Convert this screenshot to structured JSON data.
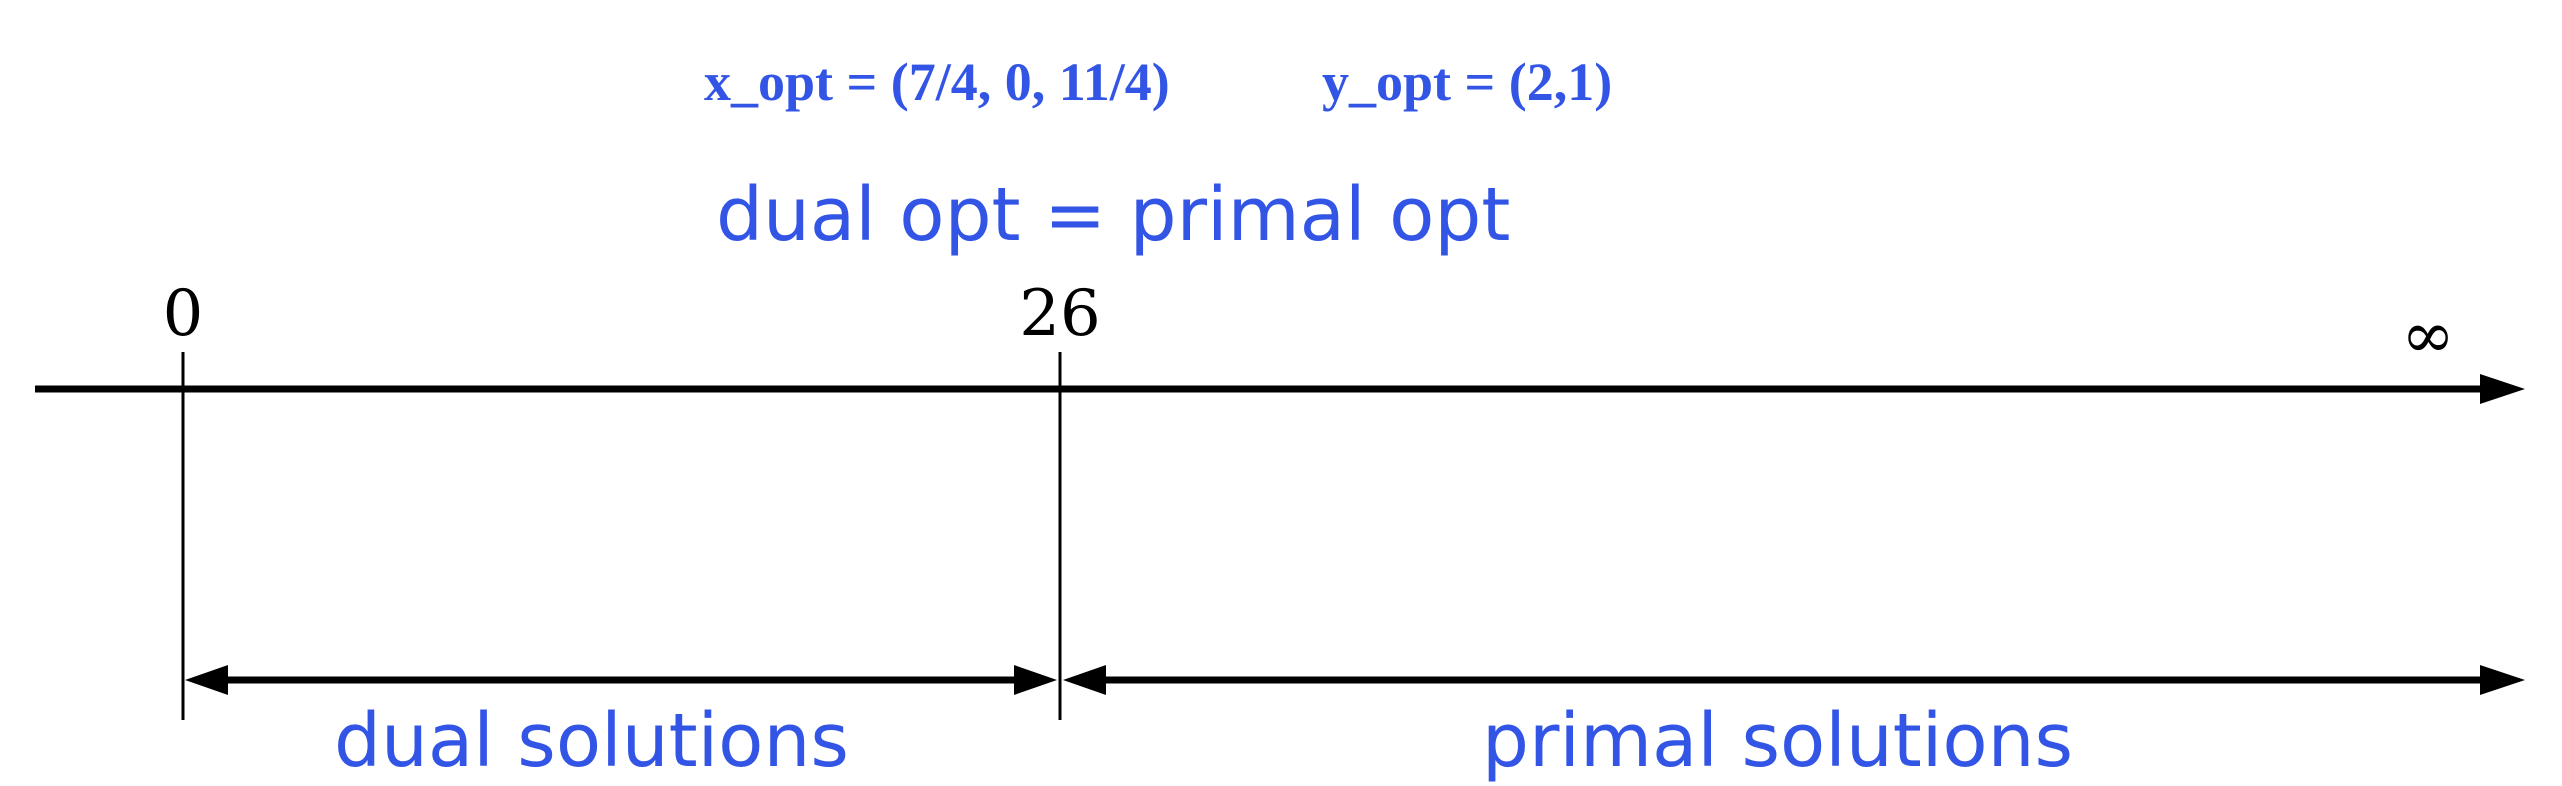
{
  "colors": {
    "accent_blue": "#3355e6",
    "axis": "#000000"
  },
  "header": {
    "x_opt": "x_opt = (7/4, 0, 11/4)",
    "y_opt": "y_opt = (2,1)",
    "equality": "dual opt = primal opt"
  },
  "axis": {
    "tick_zero": "0",
    "tick_opt": "26",
    "tick_infinity": "∞"
  },
  "regions": {
    "dual_label": "dual solutions",
    "primal_label": "primal solutions"
  }
}
